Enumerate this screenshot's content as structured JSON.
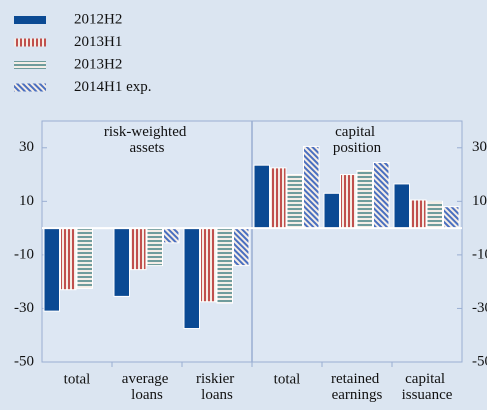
{
  "chart_data": {
    "type": "bar",
    "panels": [
      "risk-weighted assets",
      "capital position"
    ],
    "categories": [
      "total",
      "average loans",
      "riskier loans",
      "total",
      "retained earnings",
      "capital issuance"
    ],
    "series": [
      {
        "name": "2012H2",
        "color": "#0b4a93",
        "hatch": "solid",
        "values": [
          -31,
          -25.5,
          -37.5,
          23.5,
          13,
          16.5
        ]
      },
      {
        "name": "2013H1",
        "color": "#c0504d",
        "hatch": "vertical",
        "values": [
          -23,
          -15.5,
          -27.5,
          22.5,
          20,
          10.5
        ]
      },
      {
        "name": "2013H2",
        "color": "#6f9c9c",
        "hatch": "horizontal",
        "values": [
          -22.5,
          -14,
          -28,
          20,
          21.5,
          10
        ]
      },
      {
        "name": "2014H1 exp.",
        "color": "#4a6fc0",
        "hatch": "diagonal",
        "values": [
          0,
          -5.5,
          -14,
          30.5,
          24.5,
          8
        ]
      }
    ],
    "ylim": [
      -50,
      40
    ],
    "yticks": [
      -50,
      -30,
      -10,
      10,
      30
    ]
  }
}
